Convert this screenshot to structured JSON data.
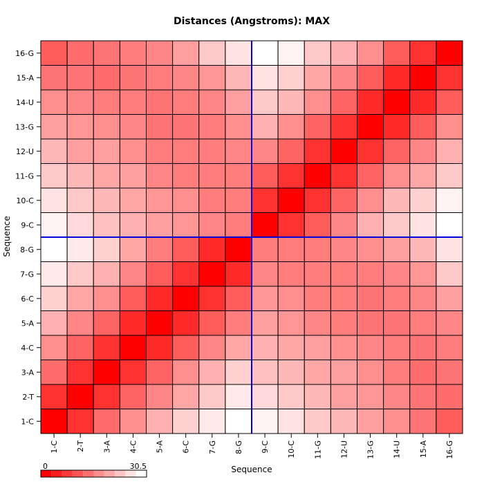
{
  "chart_data": {
    "type": "heatmap",
    "title": "Distances (Angstroms):  MAX",
    "xlabel": "Sequence",
    "ylabel": "Sequence",
    "labels": [
      "1-C",
      "2-T",
      "3-A",
      "4-C",
      "5-A",
      "6-C",
      "7-G",
      "8-G",
      "9-C",
      "10-C",
      "11-G",
      "12-U",
      "13-G",
      "14-U",
      "15-A",
      "16-G"
    ],
    "value_range": [
      0,
      30.5
    ],
    "legend": {
      "min_label": "0",
      "max_label": "30.5",
      "steps": 10,
      "placement": "bottom-left"
    },
    "divider_after_index": 8,
    "colors": {
      "low": "#ff0000",
      "high": "#ffffff",
      "divider": "#0000dd",
      "grid": "#000000"
    },
    "matrix": [
      [
        0,
        6,
        13,
        17,
        21,
        25,
        28,
        30.5,
        29,
        27,
        24,
        22,
        19,
        17,
        14,
        11
      ],
      [
        6,
        0,
        6,
        12,
        16,
        20,
        24,
        28,
        26,
        24,
        22,
        19,
        18,
        16,
        14,
        13
      ],
      [
        13,
        6,
        0,
        6,
        12,
        17,
        21,
        25,
        23,
        22,
        20,
        19,
        17,
        15,
        13,
        14
      ],
      [
        17,
        12,
        6,
        0,
        5,
        11,
        16,
        20,
        21,
        20,
        19,
        17,
        16,
        15,
        14,
        15
      ],
      [
        21,
        16,
        12,
        5,
        0,
        5,
        11,
        15,
        19,
        18,
        16,
        15,
        14,
        14,
        15,
        16
      ],
      [
        25,
        20,
        17,
        11,
        5,
        0,
        6,
        11,
        18,
        17,
        15,
        15,
        14,
        15,
        16,
        19
      ],
      [
        28,
        24,
        21,
        16,
        11,
        6,
        0,
        5,
        16,
        15,
        15,
        15,
        15,
        16,
        18,
        24
      ],
      [
        30.5,
        28,
        25,
        20,
        15,
        11,
        5,
        0,
        15,
        15,
        15,
        16,
        17,
        19,
        22,
        27
      ],
      [
        29,
        26,
        23,
        21,
        19,
        18,
        16,
        15,
        0,
        6,
        11,
        16,
        21,
        24,
        27,
        30.5
      ],
      [
        27,
        24,
        22,
        20,
        18,
        17,
        15,
        15,
        6,
        0,
        6,
        12,
        17,
        22,
        25,
        29
      ],
      [
        24,
        22,
        20,
        19,
        16,
        15,
        15,
        15,
        11,
        6,
        0,
        6,
        12,
        17,
        20,
        24
      ],
      [
        22,
        19,
        19,
        17,
        15,
        15,
        15,
        16,
        16,
        12,
        6,
        0,
        6,
        12,
        16,
        21
      ],
      [
        19,
        18,
        17,
        16,
        14,
        14,
        15,
        17,
        21,
        17,
        12,
        6,
        0,
        5,
        11,
        17
      ],
      [
        17,
        16,
        15,
        15,
        14,
        15,
        16,
        19,
        24,
        22,
        17,
        12,
        5,
        0,
        5,
        11
      ],
      [
        14,
        14,
        13,
        14,
        15,
        16,
        18,
        22,
        27,
        25,
        20,
        16,
        11,
        5,
        0,
        6
      ],
      [
        11,
        13,
        14,
        15,
        16,
        19,
        24,
        27,
        30.5,
        29,
        24,
        21,
        17,
        11,
        6,
        0
      ]
    ]
  }
}
